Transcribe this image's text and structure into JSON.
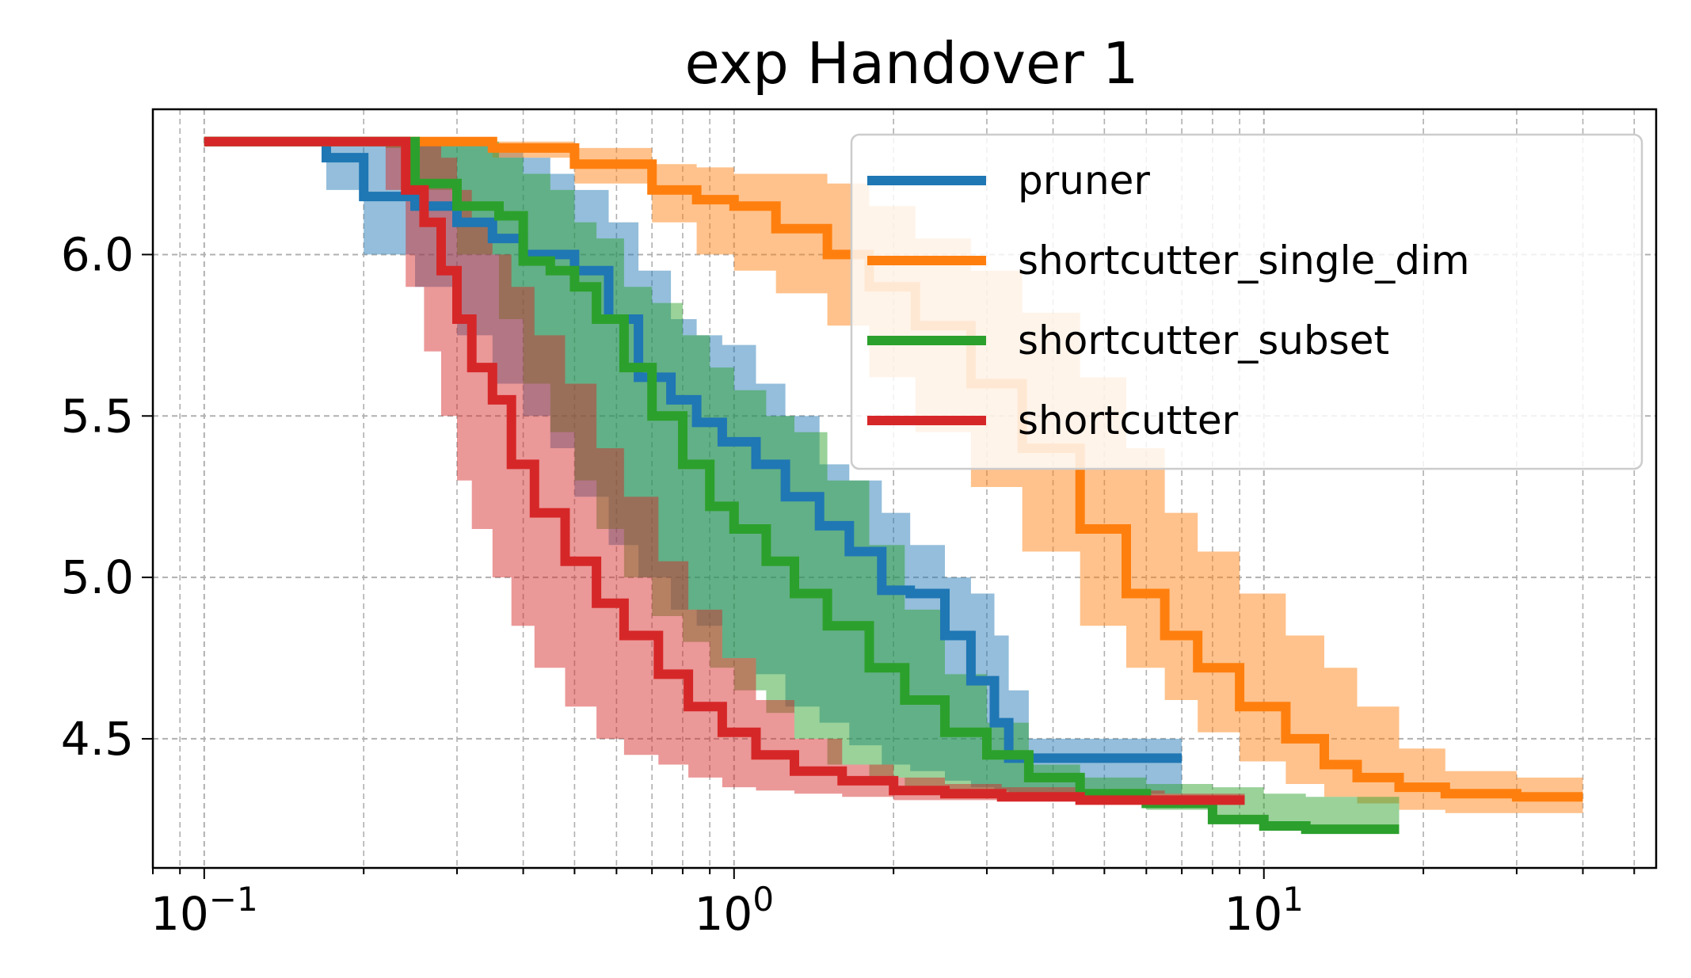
{
  "chart_data": {
    "type": "line",
    "title": "exp Handover 1",
    "xlabel": "",
    "ylabel": "",
    "xscale": "log",
    "xlim": [
      0.08,
      55
    ],
    "ylim": [
      4.1,
      6.45
    ],
    "x_ticks": [
      {
        "value": 0.1,
        "base": "10",
        "exp": "−1"
      },
      {
        "value": 1,
        "base": "10",
        "exp": "0"
      },
      {
        "value": 10,
        "base": "10",
        "exp": "1"
      }
    ],
    "y_ticks": [
      {
        "value": 4.5,
        "label": "4.5"
      },
      {
        "value": 5.0,
        "label": "5.0"
      },
      {
        "value": 5.5,
        "label": "5.5"
      },
      {
        "value": 6.0,
        "label": "6.0"
      }
    ],
    "grid": true,
    "legend_position": "top-right",
    "series": [
      {
        "name": "pruner",
        "color": "#1f77b4",
        "x": [
          0.1,
          0.17,
          0.2,
          0.25,
          0.3,
          0.35,
          0.4,
          0.45,
          0.5,
          0.58,
          0.66,
          0.76,
          0.85,
          0.95,
          1.1,
          1.25,
          1.45,
          1.65,
          1.9,
          2.15,
          2.5,
          2.8,
          3.1,
          3.3,
          3.6,
          5.0,
          7.0
        ],
        "y": [
          6.35,
          6.3,
          6.18,
          6.15,
          6.1,
          6.05,
          6.0,
          6.0,
          5.95,
          5.8,
          5.62,
          5.55,
          5.48,
          5.42,
          5.35,
          5.25,
          5.16,
          5.08,
          4.96,
          4.95,
          4.82,
          4.68,
          4.55,
          4.44,
          4.44,
          4.44,
          4.44
        ],
        "lower": [
          6.35,
          6.2,
          6.0,
          5.9,
          5.75,
          5.6,
          5.5,
          5.4,
          5.25,
          5.1,
          5.0,
          4.9,
          4.85,
          4.75,
          4.7,
          4.6,
          4.55,
          4.48,
          4.42,
          4.4,
          4.37,
          4.35,
          4.34,
          4.33,
          4.33,
          4.33,
          4.33
        ],
        "upper": [
          6.35,
          6.35,
          6.35,
          6.35,
          6.35,
          6.33,
          6.3,
          6.25,
          6.2,
          6.1,
          5.95,
          5.8,
          5.75,
          5.72,
          5.6,
          5.5,
          5.35,
          5.3,
          5.2,
          5.1,
          5.0,
          4.95,
          4.82,
          4.65,
          4.5,
          4.5,
          4.5
        ]
      },
      {
        "name": "shortcutter_single_dim",
        "color": "#ff7f0e",
        "x": [
          0.1,
          0.25,
          0.35,
          0.5,
          0.7,
          0.85,
          1.0,
          1.2,
          1.5,
          1.8,
          2.2,
          2.8,
          3.5,
          4.5,
          5.5,
          6.5,
          7.5,
          9.0,
          11.0,
          13.0,
          15.0,
          18.0,
          22.0,
          30.0,
          40.0
        ],
        "y": [
          6.35,
          6.35,
          6.33,
          6.28,
          6.2,
          6.17,
          6.15,
          6.08,
          6.0,
          5.9,
          5.78,
          5.6,
          5.4,
          5.15,
          4.95,
          4.82,
          4.72,
          4.6,
          4.5,
          4.42,
          4.38,
          4.35,
          4.33,
          4.32,
          4.32
        ],
        "lower": [
          6.35,
          6.35,
          6.3,
          6.22,
          6.1,
          6.0,
          5.95,
          5.88,
          5.78,
          5.62,
          5.45,
          5.28,
          5.08,
          4.85,
          4.72,
          4.62,
          4.52,
          4.43,
          4.36,
          4.32,
          4.3,
          4.28,
          4.27,
          4.27,
          4.27
        ],
        "upper": [
          6.35,
          6.35,
          6.35,
          6.33,
          6.28,
          6.27,
          6.25,
          6.25,
          6.22,
          6.15,
          6.05,
          5.95,
          5.82,
          5.62,
          5.4,
          5.2,
          5.08,
          4.95,
          4.82,
          4.72,
          4.6,
          4.47,
          4.4,
          4.38,
          4.38
        ]
      },
      {
        "name": "shortcutter_subset",
        "color": "#2ca02c",
        "x": [
          0.1,
          0.22,
          0.25,
          0.3,
          0.36,
          0.4,
          0.45,
          0.5,
          0.55,
          0.62,
          0.7,
          0.8,
          0.9,
          1.0,
          1.15,
          1.3,
          1.5,
          1.8,
          2.1,
          2.5,
          3.0,
          3.6,
          4.5,
          6.0,
          8.0,
          10.0,
          12.0,
          18.0
        ],
        "y": [
          6.35,
          6.35,
          6.22,
          6.15,
          6.12,
          5.98,
          5.95,
          5.9,
          5.8,
          5.65,
          5.5,
          5.35,
          5.22,
          5.15,
          5.05,
          4.95,
          4.85,
          4.72,
          4.62,
          4.52,
          4.45,
          4.38,
          4.33,
          4.3,
          4.25,
          4.23,
          4.22,
          4.22
        ],
        "lower": [
          6.35,
          6.33,
          6.2,
          6.0,
          5.8,
          5.6,
          5.45,
          5.3,
          5.15,
          5.0,
          4.88,
          4.8,
          4.72,
          4.65,
          4.58,
          4.5,
          4.42,
          4.38,
          4.35,
          4.33,
          4.32,
          4.31,
          4.3,
          4.28,
          4.25,
          4.23,
          4.22,
          4.22
        ],
        "upper": [
          6.35,
          6.35,
          6.35,
          6.35,
          6.3,
          6.25,
          6.2,
          6.1,
          6.05,
          5.9,
          5.85,
          5.75,
          5.65,
          5.58,
          5.5,
          5.45,
          5.3,
          5.1,
          4.9,
          4.7,
          4.55,
          4.42,
          4.38,
          4.36,
          4.35,
          4.33,
          4.32,
          4.32
        ]
      },
      {
        "name": "shortcutter",
        "color": "#d62728",
        "x": [
          0.1,
          0.22,
          0.24,
          0.26,
          0.28,
          0.3,
          0.32,
          0.35,
          0.38,
          0.42,
          0.48,
          0.55,
          0.62,
          0.72,
          0.82,
          0.95,
          1.1,
          1.3,
          1.6,
          2.0,
          2.5,
          3.2,
          4.5,
          6.5,
          9.2
        ],
        "y": [
          6.35,
          6.35,
          6.2,
          6.1,
          5.95,
          5.8,
          5.65,
          5.55,
          5.35,
          5.2,
          5.05,
          4.92,
          4.82,
          4.7,
          4.6,
          4.52,
          4.45,
          4.4,
          4.37,
          4.34,
          4.33,
          4.32,
          4.31,
          4.31,
          4.31
        ],
        "lower": [
          6.35,
          6.2,
          5.9,
          5.7,
          5.5,
          5.3,
          5.15,
          5.0,
          4.85,
          4.72,
          4.6,
          4.5,
          4.45,
          4.42,
          4.38,
          4.35,
          4.34,
          4.33,
          4.32,
          4.31,
          4.31,
          4.31,
          4.3,
          4.3,
          4.3
        ],
        "upper": [
          6.35,
          6.35,
          6.35,
          6.34,
          6.3,
          6.2,
          6.1,
          6.0,
          5.9,
          5.75,
          5.6,
          5.4,
          5.25,
          5.05,
          4.9,
          4.75,
          4.62,
          4.5,
          4.42,
          4.38,
          4.36,
          4.35,
          4.34,
          4.33,
          4.33
        ]
      }
    ]
  }
}
